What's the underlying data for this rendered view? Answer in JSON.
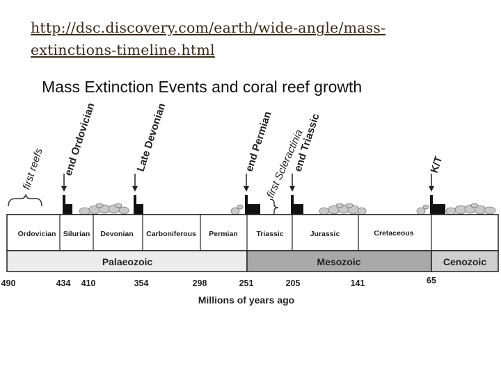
{
  "source_link": {
    "line1": "http://dsc.discovery.com/earth/wide-angle/mass-",
    "line2": "extinctions-timeline.html"
  },
  "figure_title": "Mass Extinction Events and coral reef growth",
  "events": [
    {
      "id": "first-reefs",
      "label": "first reefs",
      "kind": "brace"
    },
    {
      "id": "end-ordovician",
      "label": "end Ordovician",
      "kind": "arrow",
      "ma": 434
    },
    {
      "id": "late-devonian",
      "label": "Late Devonian",
      "kind": "arrow",
      "ma": 354
    },
    {
      "id": "end-permian",
      "label": "end Permian",
      "kind": "arrow",
      "ma": 251
    },
    {
      "id": "first-scleractinia",
      "label": "first Scleractinia",
      "kind": "brace"
    },
    {
      "id": "end-triassic",
      "label": "end Triassic",
      "kind": "arrow",
      "ma": 205
    },
    {
      "id": "kt",
      "label": "K/T",
      "kind": "arrow",
      "ma": 65
    }
  ],
  "periods": [
    "Ordovician",
    "Silurian",
    "Devonian",
    "Carboniferous",
    "Permian",
    "Triassic",
    "Jurassic",
    "Cretaceous"
  ],
  "eras": [
    {
      "name": "Palaeozoic",
      "color": "#ececec"
    },
    {
      "name": "Mesozoic",
      "color": "#a9a9a9"
    },
    {
      "name": "Cenozoic",
      "color": "#cfcfcf"
    }
  ],
  "ticks": [
    "490",
    "434",
    "410",
    "354",
    "298",
    "251",
    "205",
    "141",
    "65"
  ],
  "axis_label": "Millions of years ago",
  "colors": {
    "link": "#3b2a17",
    "mesozoic": "#a9a9a9",
    "palaeozoic": "#ececec",
    "cenozoic": "#cfcfcf"
  }
}
